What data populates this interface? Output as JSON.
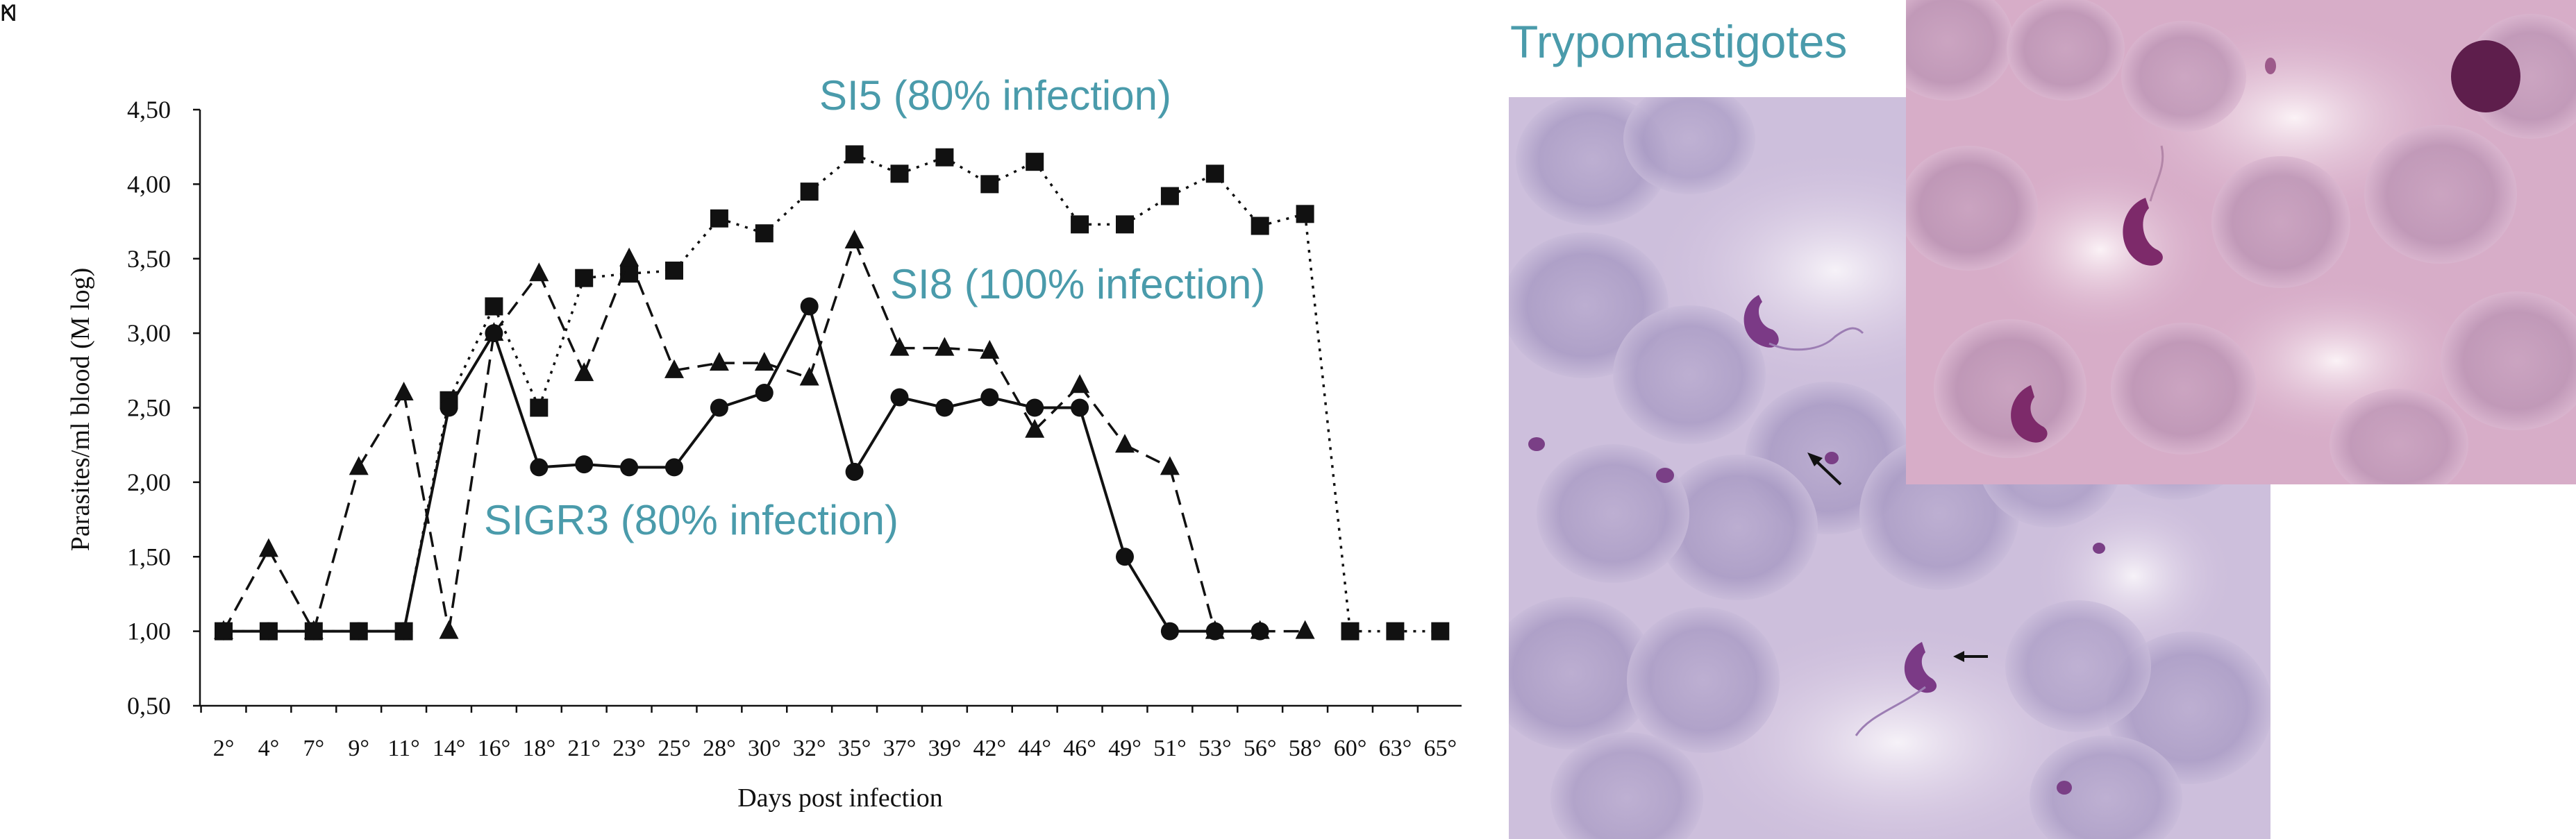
{
  "chart_data": {
    "type": "line",
    "ylabel": "Parasites/ml blood (M log)",
    "xlabel": "Days post infection",
    "ylim": [
      0.5,
      4.5
    ],
    "yticks": [
      0.5,
      1.0,
      1.5,
      2.0,
      2.5,
      3.0,
      3.5,
      4.0,
      4.5
    ],
    "ytick_labels": [
      "0,50",
      "1,00",
      "1,50",
      "2,00",
      "2,50",
      "3,00",
      "3,50",
      "4,00",
      "4,50"
    ],
    "categories": [
      "2°",
      "4°",
      "7°",
      "9°",
      "11°",
      "14°",
      "16°",
      "18°",
      "21°",
      "23°",
      "25°",
      "28°",
      "30°",
      "32°",
      "35°",
      "37°",
      "39°",
      "42°",
      "44°",
      "46°",
      "49°",
      "51°",
      "53°",
      "56°",
      "58°",
      "60°",
      "63°",
      "65°"
    ],
    "series": [
      {
        "name": "SI5 (80% infection)",
        "marker": "square",
        "line": "dotted",
        "values": [
          1.0,
          1.0,
          1.0,
          1.0,
          1.0,
          2.55,
          3.18,
          2.5,
          3.37,
          3.4,
          3.42,
          3.77,
          3.67,
          3.95,
          4.2,
          4.07,
          4.18,
          4.0,
          4.15,
          3.73,
          3.73,
          3.92,
          4.07,
          3.72,
          3.8,
          1.0,
          1.0,
          1.0
        ]
      },
      {
        "name": "SI8 (100% infection)",
        "marker": "triangle",
        "line": "dashed",
        "values": [
          1.0,
          1.55,
          1.0,
          2.1,
          2.6,
          1.0,
          3.0,
          3.4,
          2.73,
          3.5,
          2.75,
          2.8,
          2.8,
          2.7,
          3.62,
          2.9,
          2.9,
          2.88,
          2.35,
          2.65,
          2.25,
          2.1,
          1.0,
          1.0,
          1.0,
          null,
          null,
          null
        ]
      },
      {
        "name": "SIGR3 (80% infection)",
        "marker": "circle",
        "line": "solid",
        "values": [
          1.0,
          1.0,
          1.0,
          1.0,
          1.0,
          2.5,
          3.0,
          2.1,
          2.12,
          2.1,
          2.1,
          2.5,
          2.6,
          3.18,
          2.07,
          2.57,
          2.5,
          2.57,
          2.5,
          2.5,
          1.5,
          1.0,
          1.0,
          1.0,
          null,
          null,
          null,
          null
        ]
      }
    ],
    "series_label_color": "#4a9bab"
  },
  "micrograph_panel": {
    "title": "Trypomastigotes",
    "arrow_labels": {
      "n": "N",
      "k": "K"
    }
  }
}
